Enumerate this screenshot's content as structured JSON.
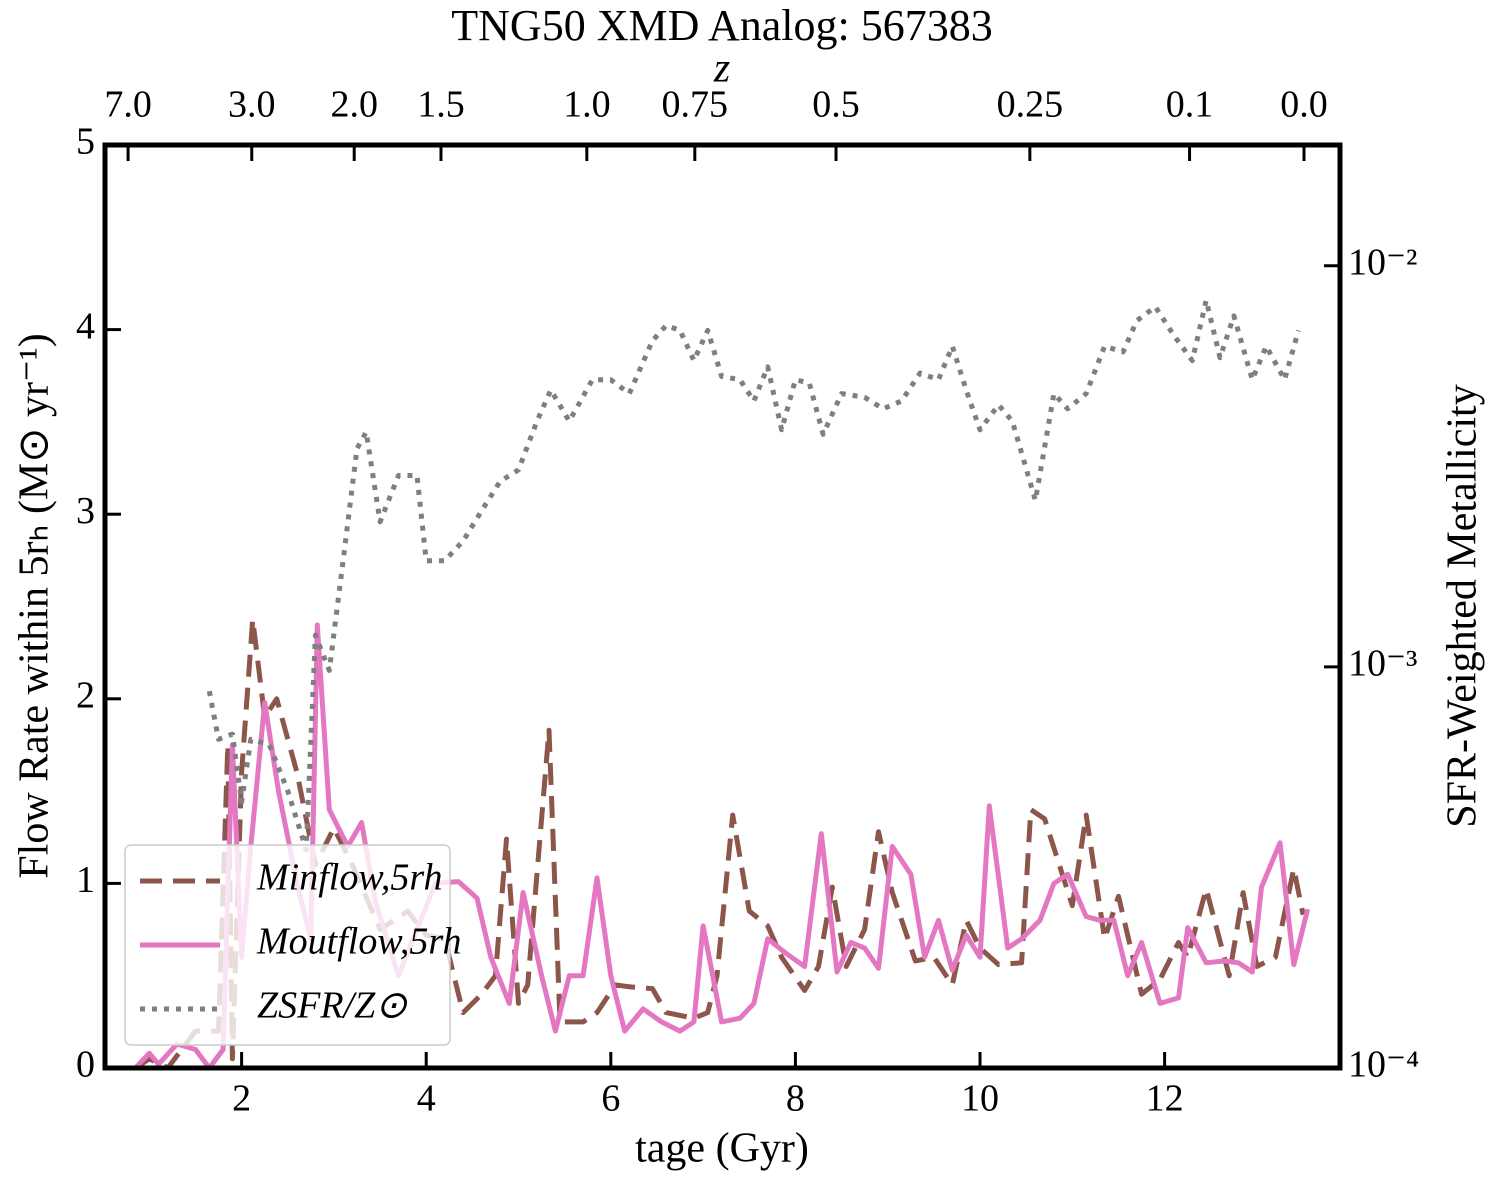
{
  "chart_data": {
    "type": "line",
    "title": "TNG50 XMD Analog: 567383",
    "xlabel": "tage (Gyr)",
    "ylabel": "Flow Rate within 5rₕ (M⊙ yr⁻¹)",
    "y2label": "SFR-Weighted Metallicity",
    "x2label": "z",
    "xlim": [
      0.52,
      13.9
    ],
    "xticks": [
      2,
      4,
      6,
      8,
      10,
      12
    ],
    "ylim": [
      0,
      5
    ],
    "yticks": [
      0,
      1,
      2,
      3,
      4,
      5
    ],
    "y2lim": [
      0.0001,
      0.02
    ],
    "y2log": true,
    "y2ticks": [
      {
        "value": 0.0001,
        "label": "10⁻⁴"
      },
      {
        "value": 0.001,
        "label": "10⁻³"
      },
      {
        "value": 0.01,
        "label": "10⁻²"
      }
    ],
    "x2ticks": [
      {
        "value": 0.77,
        "label": "7.0"
      },
      {
        "value": 2.11,
        "label": "3.0"
      },
      {
        "value": 3.22,
        "label": "2.0"
      },
      {
        "value": 4.16,
        "label": "1.5"
      },
      {
        "value": 5.74,
        "label": "1.0"
      },
      {
        "value": 6.91,
        "label": "0.75"
      },
      {
        "value": 8.44,
        "label": "0.5"
      },
      {
        "value": 10.54,
        "label": "0.25"
      },
      {
        "value": 12.27,
        "label": "0.1"
      },
      {
        "value": 13.51,
        "label": "0.0"
      }
    ],
    "legend": "lower left",
    "series": [
      {
        "name": "Minflow,5rh",
        "color": "#8c564b",
        "style": "dashed",
        "x": [
          0.85,
          1.0,
          1.2,
          1.5,
          1.75,
          1.85,
          1.9,
          2.0,
          2.12,
          2.25,
          2.38,
          2.6,
          2.8,
          3.0,
          3.2,
          3.5,
          3.8,
          4.0,
          4.2,
          4.4,
          4.6,
          4.75,
          4.87,
          5.0,
          5.1,
          5.33,
          5.45,
          5.7,
          5.85,
          6.05,
          6.2,
          6.45,
          6.6,
          6.9,
          7.05,
          7.15,
          7.32,
          7.5,
          7.7,
          7.85,
          8.1,
          8.25,
          8.4,
          8.55,
          8.75,
          8.9,
          9.05,
          9.3,
          9.5,
          9.7,
          9.85,
          10.0,
          10.2,
          10.45,
          10.55,
          10.7,
          11.0,
          11.15,
          11.35,
          11.5,
          11.75,
          11.95,
          12.15,
          12.25,
          12.45,
          12.7,
          12.85,
          13.0,
          13.2,
          13.4,
          13.5
        ],
        "values": [
          0,
          0.05,
          0,
          0.2,
          0.2,
          1.75,
          0.05,
          1.6,
          2.43,
          1.9,
          2.0,
          1.6,
          1.1,
          1.3,
          1.1,
          0.75,
          0.85,
          0.72,
          0.7,
          0.3,
          0.4,
          0.5,
          1.24,
          0.35,
          0.45,
          1.83,
          0.25,
          0.25,
          0.3,
          0.45,
          0.44,
          0.43,
          0.3,
          0.27,
          0.3,
          0.5,
          1.37,
          0.85,
          0.77,
          0.6,
          0.42,
          0.55,
          0.98,
          0.55,
          0.75,
          1.28,
          0.95,
          0.58,
          0.6,
          0.45,
          0.8,
          0.65,
          0.56,
          0.57,
          1.4,
          1.35,
          0.88,
          1.37,
          0.7,
          0.93,
          0.4,
          0.48,
          0.68,
          0.6,
          0.97,
          0.5,
          0.95,
          0.55,
          0.6,
          1.08,
          0.83
        ]
      },
      {
        "name": "Moutflow,5rh",
        "color": "#e377c2",
        "style": "solid",
        "x": [
          0.85,
          1.0,
          1.1,
          1.3,
          1.5,
          1.65,
          1.8,
          1.9,
          2.0,
          2.1,
          2.25,
          2.4,
          2.6,
          2.75,
          2.82,
          2.95,
          3.15,
          3.3,
          3.45,
          3.7,
          3.9,
          4.1,
          4.35,
          4.55,
          4.7,
          4.9,
          5.05,
          5.25,
          5.4,
          5.55,
          5.7,
          5.85,
          6.0,
          6.15,
          6.35,
          6.55,
          6.75,
          6.9,
          7.0,
          7.2,
          7.4,
          7.55,
          7.7,
          7.9,
          8.1,
          8.28,
          8.45,
          8.6,
          8.75,
          8.9,
          9.05,
          9.25,
          9.4,
          9.55,
          9.7,
          9.85,
          10.0,
          10.1,
          10.3,
          10.45,
          10.65,
          10.8,
          10.95,
          11.15,
          11.3,
          11.45,
          11.6,
          11.75,
          11.95,
          12.15,
          12.25,
          12.45,
          12.65,
          12.8,
          12.95,
          13.05,
          13.25,
          13.4,
          13.55
        ],
        "values": [
          0,
          0.08,
          0.02,
          0.13,
          0.1,
          0,
          0.1,
          1.75,
          0.6,
          1.2,
          1.98,
          1.5,
          1.0,
          0.7,
          2.4,
          1.4,
          1.2,
          1.33,
          0.9,
          0.5,
          0.75,
          1.0,
          1.01,
          0.92,
          0.6,
          0.35,
          0.95,
          0.5,
          0.2,
          0.5,
          0.5,
          1.03,
          0.5,
          0.2,
          0.32,
          0.25,
          0.2,
          0.25,
          0.77,
          0.25,
          0.27,
          0.35,
          0.7,
          0.62,
          0.55,
          1.27,
          0.52,
          0.68,
          0.65,
          0.54,
          1.2,
          1.05,
          0.6,
          0.8,
          0.53,
          0.72,
          0.6,
          1.42,
          0.65,
          0.7,
          0.8,
          1.0,
          1.05,
          0.82,
          0.8,
          0.8,
          0.5,
          0.68,
          0.35,
          0.38,
          0.76,
          0.57,
          0.58,
          0.57,
          0.52,
          0.98,
          1.22,
          0.56,
          0.86
        ]
      },
      {
        "name": "ZSFR/Z⊙",
        "color": "#7f7f7f",
        "style": "dotted",
        "axis": "y2",
        "x": [
          1.65,
          1.75,
          1.9,
          2.0,
          2.1,
          2.3,
          2.5,
          2.7,
          2.8,
          2.95,
          3.1,
          3.25,
          3.35,
          3.5,
          3.7,
          3.9,
          4.0,
          4.2,
          4.4,
          4.6,
          4.8,
          5.0,
          5.2,
          5.35,
          5.55,
          5.8,
          6.0,
          6.2,
          6.45,
          6.6,
          6.75,
          6.9,
          7.05,
          7.2,
          7.4,
          7.55,
          7.7,
          7.85,
          8.0,
          8.15,
          8.3,
          8.5,
          8.75,
          8.95,
          9.15,
          9.35,
          9.55,
          9.7,
          9.85,
          10.0,
          10.2,
          10.35,
          10.6,
          10.8,
          10.95,
          11.15,
          11.35,
          11.55,
          11.7,
          11.9,
          12.1,
          12.3,
          12.45,
          12.6,
          12.75,
          12.95,
          13.1,
          13.3,
          13.45
        ],
        "values": [
          0.00087,
          0.00066,
          0.00068,
          0.00046,
          0.00066,
          0.00064,
          0.00049,
          0.00035,
          0.0012,
          0.00098,
          0.00184,
          0.0035,
          0.00385,
          0.0023,
          0.003,
          0.003,
          0.00184,
          0.00184,
          0.00206,
          0.00245,
          0.0029,
          0.0031,
          0.0041,
          0.0049,
          0.0041,
          0.0052,
          0.0052,
          0.0048,
          0.0065,
          0.0071,
          0.0069,
          0.0058,
          0.0069,
          0.0053,
          0.0052,
          0.0046,
          0.0056,
          0.0039,
          0.0052,
          0.0051,
          0.0038,
          0.0048,
          0.0047,
          0.0044,
          0.0046,
          0.0054,
          0.0052,
          0.0063,
          0.0049,
          0.0039,
          0.0045,
          0.0041,
          0.0026,
          0.0048,
          0.0044,
          0.0048,
          0.0063,
          0.0061,
          0.0073,
          0.0079,
          0.0067,
          0.0058,
          0.0082,
          0.0059,
          0.0075,
          0.0052,
          0.0063,
          0.0052,
          0.0069
        ]
      }
    ]
  }
}
